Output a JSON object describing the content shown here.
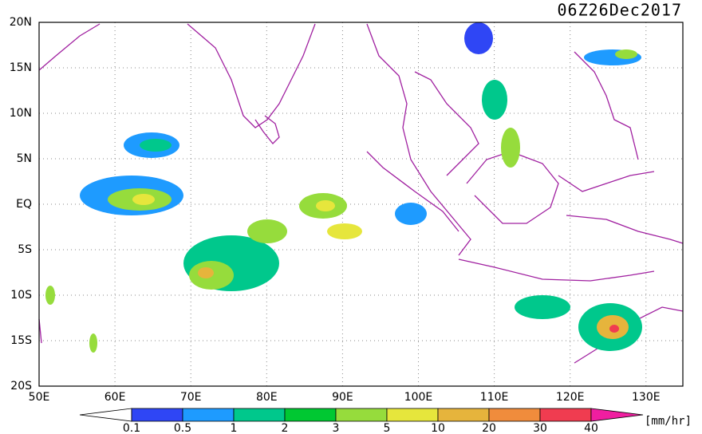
{
  "map": {
    "title": "06Z26Dec2017",
    "lat_labels": [
      "20N",
      "15N",
      "10N",
      "5N",
      "EQ",
      "5S",
      "10S",
      "15S",
      "20S"
    ],
    "lon_labels": [
      "50E",
      "60E",
      "70E",
      "80E",
      "90E",
      "100E",
      "110E",
      "120E",
      "130E"
    ],
    "colorbar": {
      "unit": "[mm/hr]",
      "levels": [
        0.1,
        0.5,
        1,
        2,
        3,
        5,
        10,
        20,
        30,
        40
      ],
      "colors": [
        "#ffffff",
        "#2f46f5",
        "#1e9bff",
        "#00c88c",
        "#00c832",
        "#96dc3c",
        "#e6e63c",
        "#e6b43c",
        "#f08c3c",
        "#f03c50",
        "#f01ea0"
      ]
    }
  }
}
